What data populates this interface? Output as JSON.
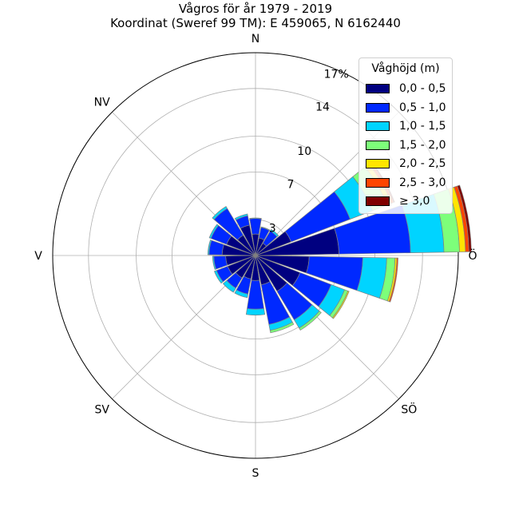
{
  "chart_data": {
    "type": "polar-stacked-bar",
    "title": "Vågros för år 1979 - 2019",
    "subtitle": "Koordinat (Sweref 99 TM): E 459065, N 6162440",
    "direction_labels": [
      "N",
      "NV",
      "V",
      "SV",
      "S",
      "SÖ",
      "Ö"
    ],
    "radial_ticks": [
      3,
      7,
      10,
      14,
      17
    ],
    "radial_tick_labels": [
      "3",
      "7",
      "10",
      "14",
      "17%"
    ],
    "rmax": 17,
    "legend": {
      "title": "Våghöjd (m)",
      "placement": "upper-right",
      "entries": [
        "0,0 - 0,5",
        "0,5 - 1,0",
        "1,0 - 1,5",
        "1,5 - 2,0",
        "2,0 - 2,5",
        "2,5 - 3,0",
        "≥ 3,0"
      ]
    },
    "bin_colors": [
      "#000080",
      "#0029ff",
      "#00d4ff",
      "#7dff7a",
      "#ffe500",
      "#ff4500",
      "#800000"
    ],
    "sector_width_deg": 20,
    "sectors": [
      {
        "direction_deg": 0,
        "values": [
          1.8,
          1.3,
          0.05,
          0,
          0,
          0,
          0
        ]
      },
      {
        "direction_deg": 20,
        "values": [
          1.5,
          0.9,
          0.05,
          0,
          0,
          0,
          0
        ]
      },
      {
        "direction_deg": 40,
        "values": [
          1.2,
          1.2,
          0.15,
          0,
          0,
          0,
          0
        ]
      },
      {
        "direction_deg": 60,
        "values": [
          3.2,
          5.3,
          2.0,
          1.3,
          0.4,
          0.2,
          0.1
        ]
      },
      {
        "direction_deg": 80,
        "values": [
          7.0,
          6.0,
          2.8,
          1.3,
          0.5,
          0.3,
          0.2
        ]
      },
      {
        "direction_deg": 100,
        "values": [
          4.5,
          4.5,
          2.0,
          0.7,
          0.15,
          0.1,
          0
        ]
      },
      {
        "direction_deg": 120,
        "values": [
          4.0,
          2.8,
          1.2,
          0.3,
          0.1,
          0,
          0
        ]
      },
      {
        "direction_deg": 140,
        "values": [
          3.5,
          2.8,
          0.8,
          0.2,
          0,
          0,
          0
        ]
      },
      {
        "direction_deg": 160,
        "values": [
          2.5,
          3.4,
          0.5,
          0.2,
          0,
          0,
          0
        ]
      },
      {
        "direction_deg": 180,
        "values": [
          2.1,
          2.4,
          0.5,
          0,
          0,
          0,
          0
        ]
      },
      {
        "direction_deg": 200,
        "values": [
          2.0,
          1.3,
          0.3,
          0,
          0,
          0,
          0
        ]
      },
      {
        "direction_deg": 220,
        "values": [
          2.2,
          1.0,
          0.4,
          0,
          0,
          0,
          0
        ]
      },
      {
        "direction_deg": 240,
        "values": [
          2.5,
          1.0,
          0.2,
          0,
          0,
          0,
          0
        ]
      },
      {
        "direction_deg": 260,
        "values": [
          2.5,
          1.0,
          0.1,
          0,
          0,
          0,
          0
        ]
      },
      {
        "direction_deg": 280,
        "values": [
          2.8,
          1.1,
          0.1,
          0,
          0,
          0,
          0
        ]
      },
      {
        "direction_deg": 300,
        "values": [
          2.6,
          1.4,
          0.15,
          0,
          0,
          0,
          0
        ]
      },
      {
        "direction_deg": 320,
        "values": [
          2.0,
          2.6,
          0.2,
          0,
          0,
          0,
          0
        ]
      },
      {
        "direction_deg": 340,
        "values": [
          2.6,
          0.8,
          0.15,
          0,
          0,
          0,
          0
        ]
      }
    ],
    "grid": true
  }
}
